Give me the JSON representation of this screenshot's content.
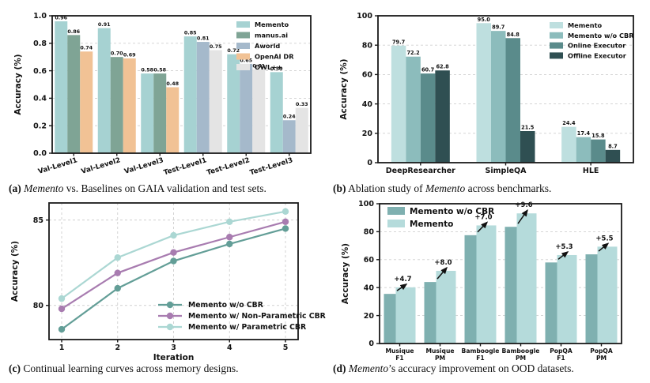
{
  "chart_data": [
    {
      "id": "a",
      "type": "bar",
      "ylabel": "Accuracy (%)",
      "ylim": [
        0,
        1.0
      ],
      "yticks": [
        0,
        0.2,
        0.4,
        0.6,
        0.8,
        1.0
      ],
      "ytick_labels": [
        "0.0",
        "0.2",
        "0.4",
        "0.6",
        "0.8",
        "1.0"
      ],
      "categories": [
        "Val-Level1",
        "Val-Level2",
        "Val-Level3",
        "Test-Level1",
        "Test-Level2",
        "Test-Level3"
      ],
      "value_decimals": 2,
      "grid": "horizontal",
      "legend_position": "top-right",
      "series": [
        {
          "name": "Memento",
          "color": "#a6d2d2",
          "values": [
            0.96,
            0.91,
            0.58,
            0.85,
            0.72,
            0.59
          ]
        },
        {
          "name": "manus.ai",
          "color": "#7fa495",
          "values": [
            0.86,
            0.7,
            0.58,
            null,
            null,
            null
          ]
        },
        {
          "name": "Aworld",
          "color": "#a5b9cb",
          "values": [
            null,
            null,
            null,
            0.81,
            0.65,
            0.24
          ]
        },
        {
          "name": "OpenAI DR",
          "color": "#f1c295",
          "values": [
            0.74,
            0.69,
            0.48,
            null,
            null,
            null
          ]
        },
        {
          "name": "OWL++",
          "color": "#e4e4e4",
          "values": [
            null,
            null,
            null,
            0.75,
            0.61,
            0.33
          ]
        }
      ],
      "caption": {
        "label": "(a)",
        "parts": [
          {
            "text": "Memento",
            "italic": true
          },
          {
            "text": " vs. Baselines on GAIA validation and test sets."
          }
        ]
      }
    },
    {
      "id": "b",
      "type": "bar",
      "ylabel": "Accuracy (%)",
      "ylim": [
        0,
        100
      ],
      "yticks": [
        0,
        20,
        40,
        60,
        80,
        100
      ],
      "ytick_labels": [
        "0",
        "20",
        "40",
        "60",
        "80",
        "100"
      ],
      "categories": [
        "DeepResearcher",
        "SimpleQA",
        "HLE"
      ],
      "value_decimals": 1,
      "grid": "horizontal",
      "legend_position": "top-right",
      "series": [
        {
          "name": "Memento",
          "color": "#bedfdf",
          "values": [
            79.7,
            95.0,
            24.4
          ]
        },
        {
          "name": "Memento w/o CBR",
          "color": "#8cbcbc",
          "values": [
            72.2,
            89.7,
            17.4
          ]
        },
        {
          "name": "Online Executor",
          "color": "#5a8b8b",
          "values": [
            60.7,
            84.8,
            15.8
          ]
        },
        {
          "name": "Offline Executor",
          "color": "#2f4f52",
          "values": [
            62.8,
            21.5,
            8.7
          ]
        }
      ],
      "caption": {
        "label": "(b)",
        "parts": [
          {
            "text": "Ablation study of "
          },
          {
            "text": "Memento",
            "italic": true
          },
          {
            "text": " across benchmarks."
          }
        ]
      }
    },
    {
      "id": "c",
      "type": "line",
      "xlabel": "Iteration",
      "ylabel": "Accuracy (%)",
      "x": [
        1,
        2,
        3,
        4,
        5
      ],
      "xtick_labels": [
        "1",
        "2",
        "3",
        "4",
        "5"
      ],
      "ylim": [
        78,
        86
      ],
      "yticks": [
        80,
        85
      ],
      "ytick_labels": [
        "80",
        "85"
      ],
      "grid": "both",
      "legend_position": "bottom-right",
      "series": [
        {
          "name": "Memento w/o CBR",
          "color": "#639e97",
          "values": [
            78.6,
            81.0,
            82.6,
            83.6,
            84.5
          ]
        },
        {
          "name": "Memento w/ Non-Parametric CBR",
          "color": "#a87cb0",
          "values": [
            79.8,
            81.9,
            83.1,
            84.0,
            84.9
          ]
        },
        {
          "name": "Memento w/ Parametric CBR",
          "color": "#abd7d3",
          "values": [
            80.4,
            82.8,
            84.1,
            84.9,
            85.5
          ]
        }
      ],
      "caption": {
        "label": "(c)",
        "parts": [
          {
            "text": "Continual learning curves across memory designs."
          }
        ]
      }
    },
    {
      "id": "d",
      "type": "bar-overlap",
      "ylabel": "Accuracy (%)",
      "ylim": [
        0,
        100
      ],
      "yticks": [
        0,
        20,
        40,
        60,
        80,
        100
      ],
      "ytick_labels": [
        "0",
        "20",
        "40",
        "60",
        "80",
        "100"
      ],
      "categories": [
        [
          "Musique",
          "F1"
        ],
        [
          "Musique",
          "PM"
        ],
        [
          "Bamboogle",
          "F1"
        ],
        [
          "Bamboogle",
          "PM"
        ],
        [
          "PopQA",
          "F1"
        ],
        [
          "PopQA",
          "PM"
        ]
      ],
      "grid": "horizontal",
      "legend_position": "top-left",
      "series": [
        {
          "name": "Memento w/o CBR",
          "color": "#7fb0b0",
          "values": [
            35.5,
            44.0,
            77.5,
            83.5,
            58.0,
            63.8
          ]
        },
        {
          "name": "Memento",
          "color": "#b5dbdb",
          "values": [
            40.2,
            52.0,
            84.5,
            93.1,
            63.3,
            69.3
          ]
        }
      ],
      "improvements": [
        "+4.7",
        "+8.0",
        "+7.0",
        "+9.6",
        "+5.3",
        "+5.5"
      ],
      "caption": {
        "label": "(d)",
        "parts": [
          {
            "text": "Memento",
            "italic": true
          },
          {
            "text": "’s accuracy improvement on OOD datasets."
          }
        ]
      }
    }
  ]
}
